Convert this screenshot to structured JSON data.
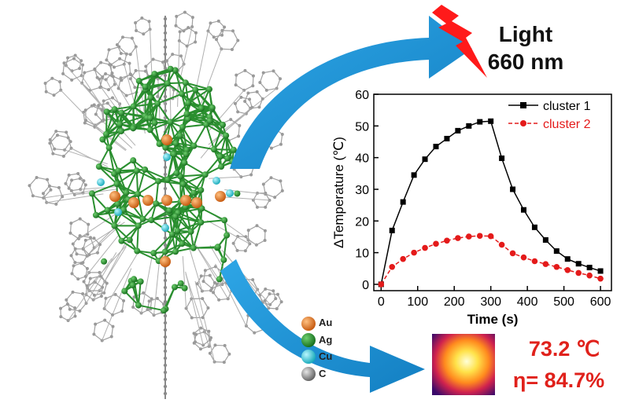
{
  "light": {
    "line1": "Light",
    "line2": "660 nm"
  },
  "atom_legend": [
    {
      "label": "Au",
      "color": "#e8731c"
    },
    {
      "label": "Ag",
      "color": "#1f8a2a"
    },
    {
      "label": "Cu",
      "color": "#28d3df"
    },
    {
      "label": "C",
      "color": "#8a8a8a"
    }
  ],
  "result": {
    "temperature": "73.2 ℃",
    "efficiency": "η= 84.7%"
  },
  "colors": {
    "arrow": "#1a8fd0",
    "bolt": "#ff1a1a",
    "result_text": "#e0211b",
    "cluster_green": "#2a8f2f",
    "ligand_gray": "#9a9a9a"
  },
  "chart_data": {
    "type": "line",
    "xlabel": "Time (s)",
    "ylabel": "ΔTemperature (℃)",
    "xlim": [
      -20,
      630
    ],
    "ylim": [
      -2,
      60
    ],
    "xticks": [
      0,
      100,
      200,
      300,
      400,
      500,
      600
    ],
    "yticks": [
      0,
      10,
      20,
      30,
      40,
      50,
      60
    ],
    "grid": false,
    "legend": "top-right",
    "series": [
      {
        "name": "cluster 1",
        "color": "#000000",
        "marker": "square",
        "x": [
          0,
          30,
          60,
          90,
          120,
          150,
          180,
          210,
          240,
          270,
          300,
          330,
          360,
          390,
          420,
          450,
          480,
          510,
          540,
          570,
          600
        ],
        "y": [
          0,
          17,
          26,
          34.5,
          39.5,
          43.5,
          46,
          48.5,
          50,
          51.3,
          51.5,
          39.8,
          30,
          23.5,
          18,
          14,
          10.5,
          8,
          6.5,
          5.3,
          4.2
        ]
      },
      {
        "name": "cluster 2",
        "color": "#e41a1a",
        "marker": "circle",
        "x": [
          0,
          30,
          60,
          90,
          120,
          150,
          180,
          210,
          240,
          270,
          300,
          330,
          360,
          390,
          420,
          450,
          480,
          510,
          540,
          570,
          600
        ],
        "y": [
          0,
          5.5,
          8,
          10,
          11.5,
          12.8,
          13.8,
          14.6,
          15.1,
          15.3,
          15.2,
          12.5,
          9.8,
          8.5,
          7.3,
          6.4,
          5.5,
          4.5,
          3.6,
          2.8,
          1.8
        ]
      }
    ]
  }
}
